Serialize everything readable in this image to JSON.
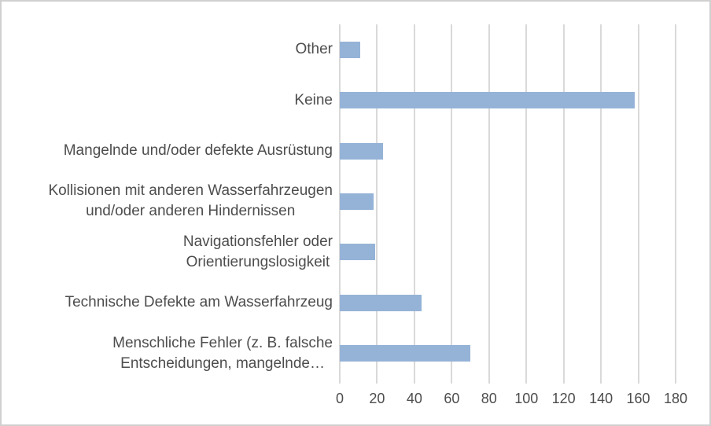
{
  "window": {
    "background": "#ffffff",
    "border_color": "#d0d0d0"
  },
  "chart_data": {
    "type": "bar",
    "orientation": "horizontal",
    "title": "",
    "xlabel": "",
    "ylabel": "",
    "xlim": [
      0,
      180
    ],
    "x_ticks": [
      0,
      20,
      40,
      60,
      80,
      100,
      120,
      140,
      160,
      180
    ],
    "grid": true,
    "legend": false,
    "bar_color": "#95b3d7",
    "gridline_color": "#d9d9d9",
    "text_color": "#4d4d4d",
    "categories": [
      "Other",
      "Keine",
      "Mangelnde und/oder defekte Ausrüstung",
      "Kollisionen mit anderen Wasserfahrzeugen und/oder anderen Hindernissen",
      "Navigationsfehler oder Orientierungslosigkeit",
      "Technische Defekte am Wasserfahrzeug",
      "Menschliche Fehler (z. B. falsche Entscheidungen, mangelnde…"
    ],
    "category_lines": [
      [
        "Other"
      ],
      [
        "Keine"
      ],
      [
        "Mangelnde und/oder defekte Ausrüstung"
      ],
      [
        "Kollisionen mit anderen Wasserfahrzeugen",
        "und/oder anderen Hindernissen"
      ],
      [
        "Navigationsfehler oder",
        "Orientierungslosigkeit"
      ],
      [
        "Technische Defekte am Wasserfahrzeug"
      ],
      [
        "Menschliche Fehler (z. B. falsche",
        "Entscheidungen, mangelnde…"
      ]
    ],
    "values": [
      11,
      158,
      23,
      18,
      19,
      44,
      70
    ]
  }
}
